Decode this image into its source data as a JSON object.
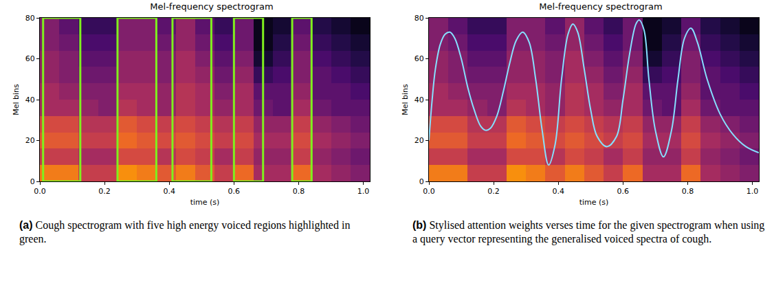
{
  "chart_data": [
    {
      "type": "heatmap",
      "title": "Mel-frequency spectrogram",
      "x_label": "time (s)",
      "y_label": "Mel bins",
      "xlim": [
        0,
        1.02
      ],
      "ylim": [
        0,
        80
      ],
      "xticks": [
        {
          "value": 0,
          "label": "0.0"
        },
        {
          "value": 0.2,
          "label": "0.2"
        },
        {
          "value": 0.4,
          "label": "0.4"
        },
        {
          "value": 0.6,
          "label": "0.6"
        },
        {
          "value": 0.8,
          "label": "0.8"
        },
        {
          "value": 1,
          "label": "1.0"
        }
      ],
      "yticks": [
        0,
        20,
        40,
        60,
        80
      ],
      "x": [
        0.03,
        0.09,
        0.15,
        0.21,
        0.27,
        0.33,
        0.39,
        0.45,
        0.51,
        0.57,
        0.63,
        0.69,
        0.75,
        0.81,
        0.87,
        0.93,
        0.99
      ],
      "y": [
        4,
        12,
        20,
        28,
        36,
        44,
        52,
        60,
        68,
        76
      ],
      "zlim": [
        0,
        10
      ],
      "cells": [
        [
          8,
          8,
          6,
          6,
          8.5,
          8,
          7,
          8,
          7,
          6,
          7.5,
          5,
          5,
          7.5,
          5,
          4.5,
          4
        ],
        [
          6,
          6,
          5,
          5,
          6.5,
          6.5,
          5.5,
          6.5,
          6,
          5,
          6,
          4.5,
          4.5,
          6,
          4.5,
          4,
          3.5
        ],
        [
          7,
          7,
          6,
          6,
          7.5,
          7,
          6.5,
          7,
          6.5,
          6,
          6.5,
          5,
          5,
          6.5,
          5,
          4.5,
          4
        ],
        [
          6.5,
          6.5,
          5.5,
          5.5,
          7,
          6.5,
          6,
          6.5,
          6,
          5.5,
          6,
          4.5,
          4.5,
          6,
          4.5,
          4,
          3.5
        ],
        [
          5,
          5,
          4.5,
          4,
          5.5,
          5,
          4.5,
          5.5,
          5,
          4.5,
          5,
          3.5,
          3,
          5,
          3.5,
          3,
          3
        ],
        [
          5,
          4.5,
          4,
          4,
          5,
          5,
          4.5,
          5.5,
          5,
          4,
          5,
          3,
          3,
          4.5,
          3,
          3,
          2.5
        ],
        [
          4.5,
          4,
          3.5,
          3.5,
          4.5,
          4.5,
          4,
          5,
          4.5,
          3.5,
          4.5,
          2,
          2.5,
          4,
          3,
          2.5,
          2
        ],
        [
          4.5,
          4,
          3,
          3,
          4.5,
          4.5,
          4,
          5,
          4,
          3,
          4,
          1,
          2,
          4,
          2.5,
          2,
          1.5
        ],
        [
          4,
          3.5,
          2.5,
          2.5,
          4,
          4,
          3.5,
          4.5,
          3.5,
          2.5,
          3.5,
          0.5,
          1.5,
          3.5,
          2,
          1.5,
          1
        ],
        [
          4,
          3,
          2,
          2,
          4,
          4,
          3,
          4.5,
          3,
          2,
          3.5,
          0.5,
          1,
          3,
          1.5,
          1,
          0.5
        ]
      ],
      "regions": {
        "color": "#7ff01e",
        "spans": [
          [
            0.01,
            0.125
          ],
          [
            0.24,
            0.36
          ],
          [
            0.41,
            0.53
          ],
          [
            0.6,
            0.69
          ],
          [
            0.78,
            0.84
          ]
        ]
      },
      "caption_label": "(a)",
      "caption": "Cough spectrogram with five high energy voiced regions highlighted in green."
    },
    {
      "type": "heatmap",
      "title": "Mel-frequency spectrogram",
      "x_label": "time (s)",
      "y_label": "Mel bins",
      "xlim": [
        0,
        1.02
      ],
      "ylim": [
        0,
        80
      ],
      "xticks": [
        {
          "value": 0,
          "label": "0.0"
        },
        {
          "value": 0.2,
          "label": "0.2"
        },
        {
          "value": 0.4,
          "label": "0.4"
        },
        {
          "value": 0.6,
          "label": "0.6"
        },
        {
          "value": 0.8,
          "label": "0.8"
        },
        {
          "value": 1,
          "label": "1.0"
        }
      ],
      "yticks": [
        0,
        20,
        40,
        60,
        80
      ],
      "x": [
        0.03,
        0.09,
        0.15,
        0.21,
        0.27,
        0.33,
        0.39,
        0.45,
        0.51,
        0.57,
        0.63,
        0.69,
        0.75,
        0.81,
        0.87,
        0.93,
        0.99
      ],
      "y": [
        4,
        12,
        20,
        28,
        36,
        44,
        52,
        60,
        68,
        76
      ],
      "zlim": [
        0,
        10
      ],
      "cells": [
        [
          8,
          8,
          6,
          6,
          8.5,
          8,
          7,
          8,
          7,
          6,
          7.5,
          5,
          5,
          7.5,
          5,
          4.5,
          4
        ],
        [
          6,
          6,
          5,
          5,
          6.5,
          6.5,
          5.5,
          6.5,
          6,
          5,
          6,
          4.5,
          4.5,
          6,
          4.5,
          4,
          3.5
        ],
        [
          7,
          7,
          6,
          6,
          7.5,
          7,
          6.5,
          7,
          6.5,
          6,
          6.5,
          5,
          5,
          6.5,
          5,
          4.5,
          4
        ],
        [
          6.5,
          6.5,
          5.5,
          5.5,
          7,
          6.5,
          6,
          6.5,
          6,
          5.5,
          6,
          4.5,
          4.5,
          6,
          4.5,
          4,
          3.5
        ],
        [
          5,
          5,
          4.5,
          4,
          5.5,
          5,
          4.5,
          5.5,
          5,
          4.5,
          5,
          3.5,
          3,
          5,
          3.5,
          3,
          3
        ],
        [
          5,
          4.5,
          4,
          4,
          5,
          5,
          4.5,
          5.5,
          5,
          4,
          5,
          3,
          3,
          4.5,
          3,
          3,
          2.5
        ],
        [
          4.5,
          4,
          3.5,
          3.5,
          4.5,
          4.5,
          4,
          5,
          4.5,
          3.5,
          4.5,
          2,
          2.5,
          4,
          3,
          2.5,
          2
        ],
        [
          4.5,
          4,
          3,
          3,
          4.5,
          4.5,
          4,
          5,
          4,
          3,
          4,
          1,
          2,
          4,
          2.5,
          2,
          1.5
        ],
        [
          4,
          3.5,
          2.5,
          2.5,
          4,
          4,
          3.5,
          4.5,
          3.5,
          2.5,
          3.5,
          0.5,
          1.5,
          3.5,
          2,
          1.5,
          1
        ],
        [
          4,
          3,
          2,
          2,
          4,
          4,
          3,
          4.5,
          3,
          2,
          3.5,
          0.5,
          1,
          3,
          1.5,
          1,
          0.5
        ]
      ],
      "curve": {
        "color": "#86e0ff",
        "x": [
          0,
          0.01,
          0.02,
          0.035,
          0.05,
          0.065,
          0.08,
          0.1,
          0.12,
          0.14,
          0.16,
          0.175,
          0.19,
          0.21,
          0.23,
          0.25,
          0.27,
          0.29,
          0.31,
          0.33,
          0.35,
          0.37,
          0.39,
          0.41,
          0.43,
          0.445,
          0.46,
          0.48,
          0.5,
          0.52,
          0.55,
          0.58,
          0.6,
          0.62,
          0.64,
          0.65,
          0.665,
          0.68,
          0.7,
          0.725,
          0.75,
          0.77,
          0.79,
          0.81,
          0.83,
          0.86,
          0.9,
          0.94,
          0.98,
          1.02
        ],
        "y": [
          20,
          40,
          55,
          67,
          72,
          73,
          70,
          60,
          46,
          35,
          27,
          25,
          26,
          32,
          44,
          58,
          69,
          73,
          68,
          50,
          25,
          8,
          18,
          50,
          72,
          77,
          73,
          55,
          35,
          22,
          17,
          22,
          40,
          62,
          77,
          79,
          74,
          50,
          25,
          12,
          25,
          50,
          70,
          75,
          68,
          50,
          33,
          23,
          17,
          14
        ]
      },
      "caption_label": "(b)",
      "caption": "Stylised attention weights verses time for the given spectrogram when using a query vector representing the generalised voiced spectra of cough."
    }
  ]
}
